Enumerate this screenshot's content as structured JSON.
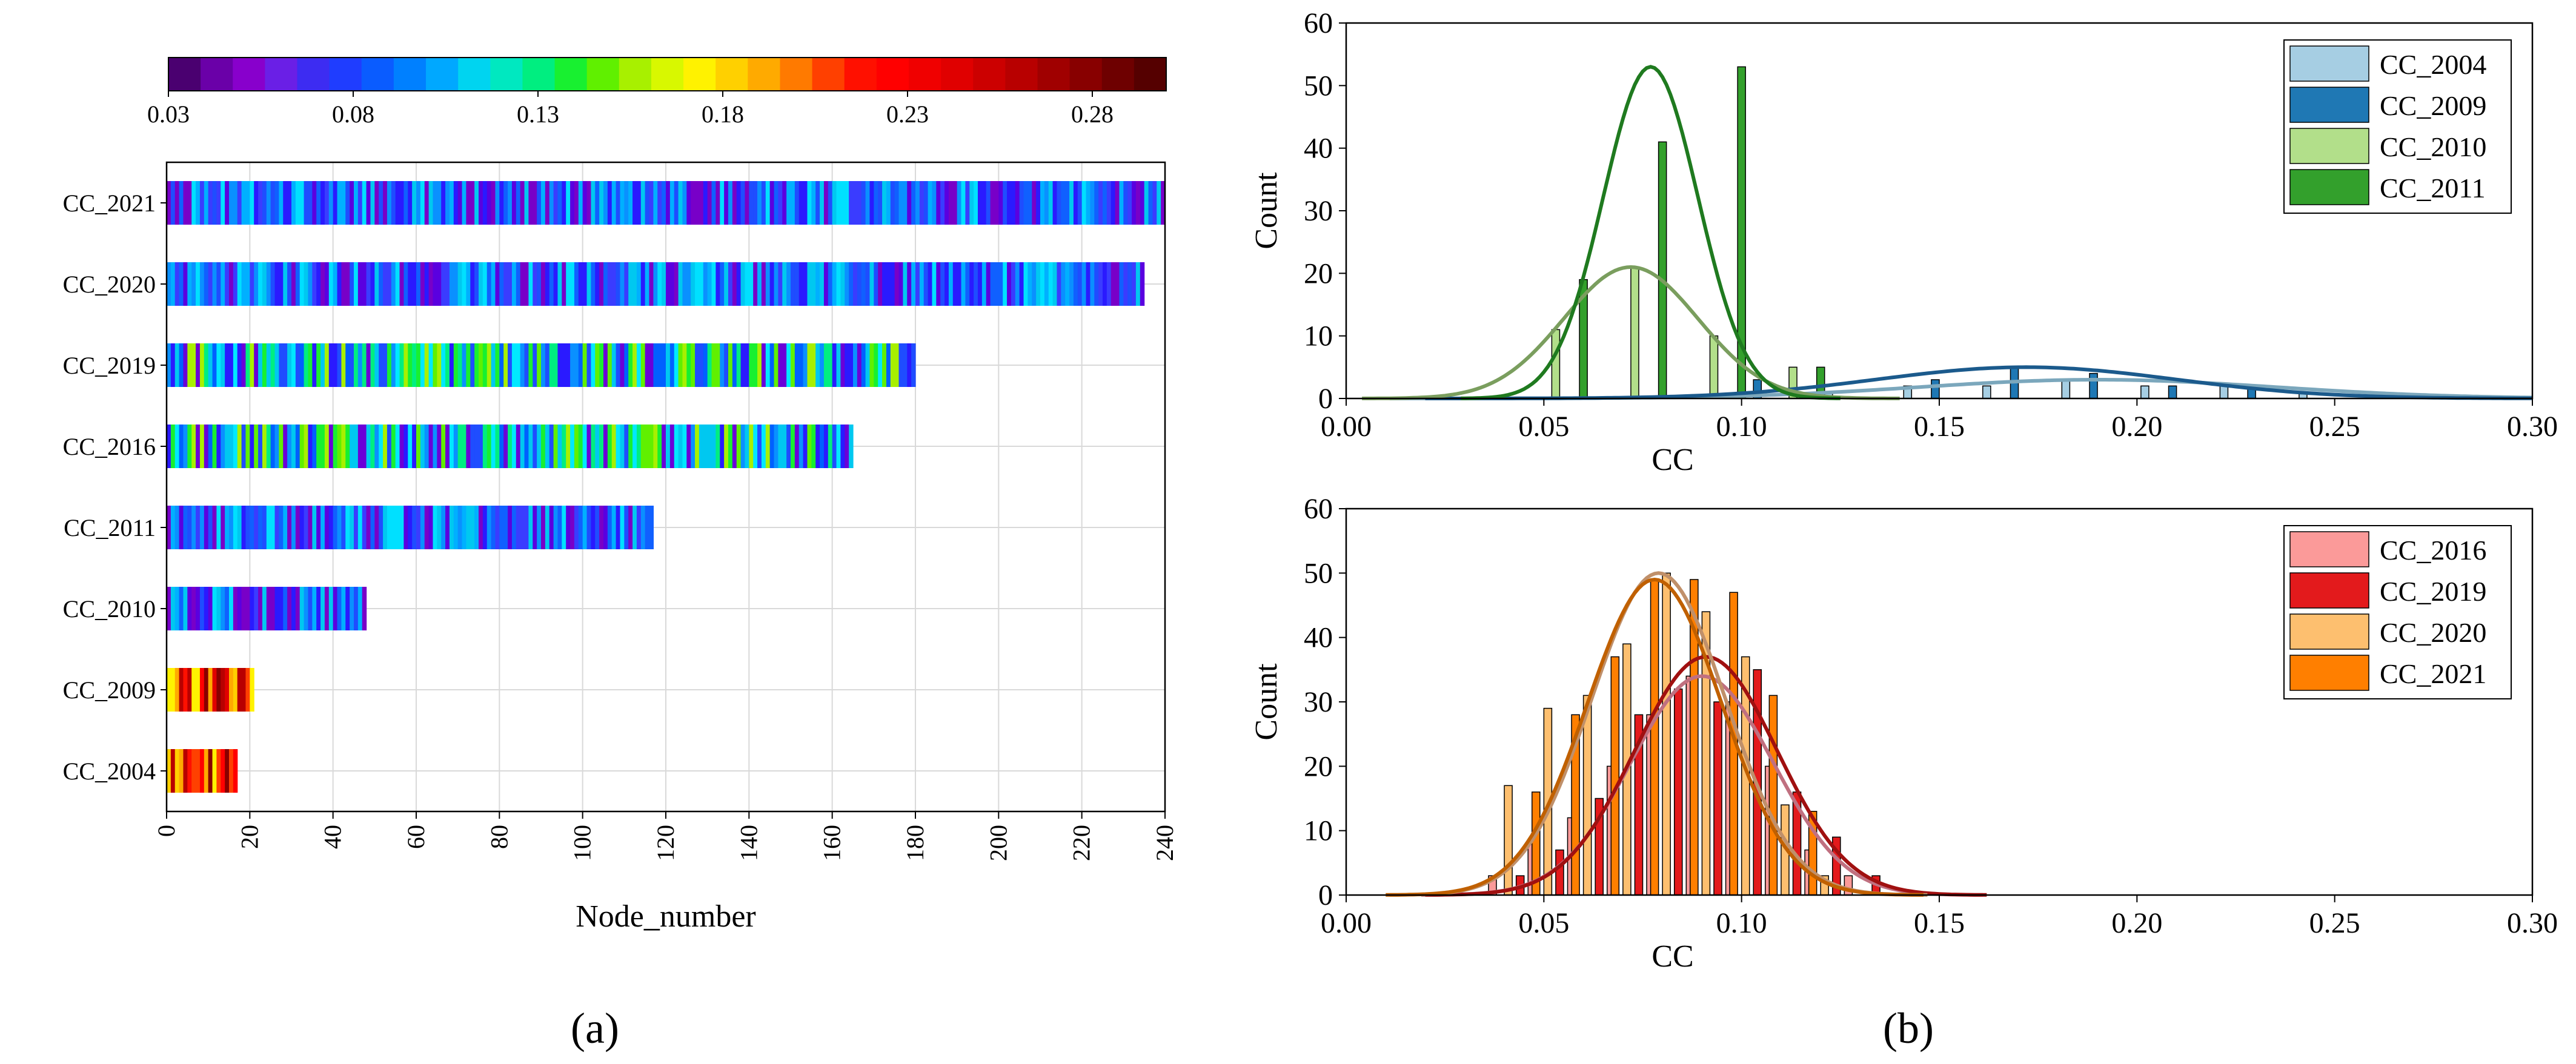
{
  "panel_labels": {
    "a": "(a)",
    "b": "(b)"
  },
  "chart_data": [
    {
      "type": "heatmap",
      "panel": "a",
      "title": "",
      "xlabel": "Node_number",
      "ylabel": "",
      "xlim": [
        0,
        240
      ],
      "xticks": [
        0,
        20,
        40,
        60,
        80,
        100,
        120,
        140,
        160,
        180,
        200,
        220,
        240
      ],
      "grid": true,
      "colorbar": {
        "range": [
          0.03,
          0.3
        ],
        "ticks": [
          "0.03",
          "0.08",
          "0.13",
          "0.18",
          "0.23",
          "0.28"
        ],
        "colors": [
          "#4a0070",
          "#6a00a8",
          "#8800cc",
          "#6a1fe6",
          "#3d2cf2",
          "#1f3dff",
          "#0a5cff",
          "#0080ff",
          "#00a8ff",
          "#00d4f0",
          "#00e8c0",
          "#00ee80",
          "#18f030",
          "#60f000",
          "#a8f000",
          "#d8f800",
          "#fff200",
          "#ffd000",
          "#ffaa00",
          "#ff7a00",
          "#ff4000",
          "#ff1000",
          "#ff0000",
          "#f00000",
          "#e00000",
          "#cc0000",
          "#b80000",
          "#a00000",
          "#880000",
          "#6e0000",
          "#550000"
        ]
      },
      "rows": [
        {
          "label": "CC_2021",
          "nodes": 240
        },
        {
          "label": "CC_2020",
          "nodes": 235
        },
        {
          "label": "CC_2019",
          "nodes": 180
        },
        {
          "label": "CC_2016",
          "nodes": 165
        },
        {
          "label": "CC_2011",
          "nodes": 117
        },
        {
          "label": "CC_2010",
          "nodes": 48
        },
        {
          "label": "CC_2009",
          "nodes": 21
        },
        {
          "label": "CC_2004",
          "nodes": 17
        }
      ]
    },
    {
      "type": "bar",
      "panel": "b-top",
      "xlabel": "CC",
      "ylabel": "Count",
      "xlim": [
        0,
        0.3
      ],
      "ylim": [
        0,
        60
      ],
      "xticks": [
        "0.00",
        "0.05",
        "0.10",
        "0.15",
        "0.20",
        "0.25",
        "0.30"
      ],
      "yticks": [
        "0",
        "10",
        "20",
        "30",
        "40",
        "50",
        "60"
      ],
      "legend_position": "top-right",
      "series": [
        {
          "name": "CC_2004",
          "color": "#a6cee3",
          "curve_color": "#7ba7bc",
          "bins": [
            0.125,
            0.145,
            0.165,
            0.185,
            0.205,
            0.225,
            0.245
          ],
          "values": [
            1,
            2,
            2,
            3,
            2,
            2,
            1
          ],
          "fit": {
            "mu": 0.19,
            "sigma": 0.045,
            "peak": 3
          }
        },
        {
          "name": "CC_2009",
          "color": "#1f78b4",
          "curve_color": "#1b5a8c",
          "bins": [
            0.105,
            0.15,
            0.17,
            0.19,
            0.21,
            0.23
          ],
          "values": [
            3,
            3,
            5,
            4,
            2,
            2
          ],
          "fit": {
            "mu": 0.172,
            "sigma": 0.038,
            "peak": 5
          }
        },
        {
          "name": "CC_2010",
          "color": "#b2df8a",
          "curve_color": "#7a9e5e",
          "bins": [
            0.052,
            0.072,
            0.092,
            0.112
          ],
          "values": [
            11,
            21,
            10,
            5
          ],
          "fit": {
            "mu": 0.072,
            "sigma": 0.017,
            "peak": 21
          }
        },
        {
          "name": "CC_2011",
          "color": "#33a02c",
          "curve_color": "#1f7a1f",
          "bins": [
            0.057,
            0.077,
            0.097,
            0.117
          ],
          "values": [
            19,
            41,
            53,
            5
          ],
          "fit": {
            "mu": 0.077,
            "sigma": 0.012,
            "peak": 53
          }
        }
      ]
    },
    {
      "type": "bar",
      "panel": "b-bottom",
      "xlabel": "CC",
      "ylabel": "Count",
      "xlim": [
        0,
        0.3
      ],
      "ylim": [
        0,
        60
      ],
      "xticks": [
        "0.00",
        "0.05",
        "0.10",
        "0.15",
        "0.20",
        "0.25",
        "0.30"
      ],
      "yticks": [
        "0",
        "10",
        "20",
        "30",
        "40",
        "50",
        "60"
      ],
      "legend_position": "top-right",
      "series": [
        {
          "name": "CC_2016",
          "color": "#fb9a99",
          "curve_color": "#c07080",
          "bins": [
            0.04,
            0.05,
            0.06,
            0.07,
            0.08,
            0.09,
            0.1,
            0.11,
            0.12,
            0.13
          ],
          "values": [
            3,
            8,
            12,
            20,
            28,
            34,
            30,
            20,
            7,
            3
          ],
          "fit": {
            "mu": 0.09,
            "sigma": 0.018,
            "peak": 34
          }
        },
        {
          "name": "CC_2019",
          "color": "#e31a1c",
          "curve_color": "#a01010",
          "bins": [
            0.045,
            0.055,
            0.065,
            0.075,
            0.085,
            0.095,
            0.105,
            0.115,
            0.125,
            0.135
          ],
          "values": [
            3,
            7,
            15,
            28,
            32,
            30,
            35,
            16,
            9,
            3
          ],
          "fit": {
            "mu": 0.091,
            "sigma": 0.018,
            "peak": 37
          }
        },
        {
          "name": "CC_2020",
          "color": "#fdbf6f",
          "curve_color": "#c0906a",
          "bins": [
            0.04,
            0.05,
            0.06,
            0.07,
            0.08,
            0.09,
            0.1,
            0.11,
            0.12
          ],
          "values": [
            17,
            29,
            31,
            39,
            50,
            44,
            37,
            14,
            3
          ],
          "fit": {
            "mu": 0.079,
            "sigma": 0.017,
            "peak": 50
          }
        },
        {
          "name": "CC_2021",
          "color": "#ff7f00",
          "curve_color": "#c06000",
          "bins": [
            0.045,
            0.055,
            0.065,
            0.075,
            0.085,
            0.095,
            0.105,
            0.115
          ],
          "values": [
            16,
            28,
            37,
            49,
            49,
            47,
            31,
            13
          ],
          "fit": {
            "mu": 0.078,
            "sigma": 0.017,
            "peak": 49
          }
        }
      ]
    }
  ]
}
